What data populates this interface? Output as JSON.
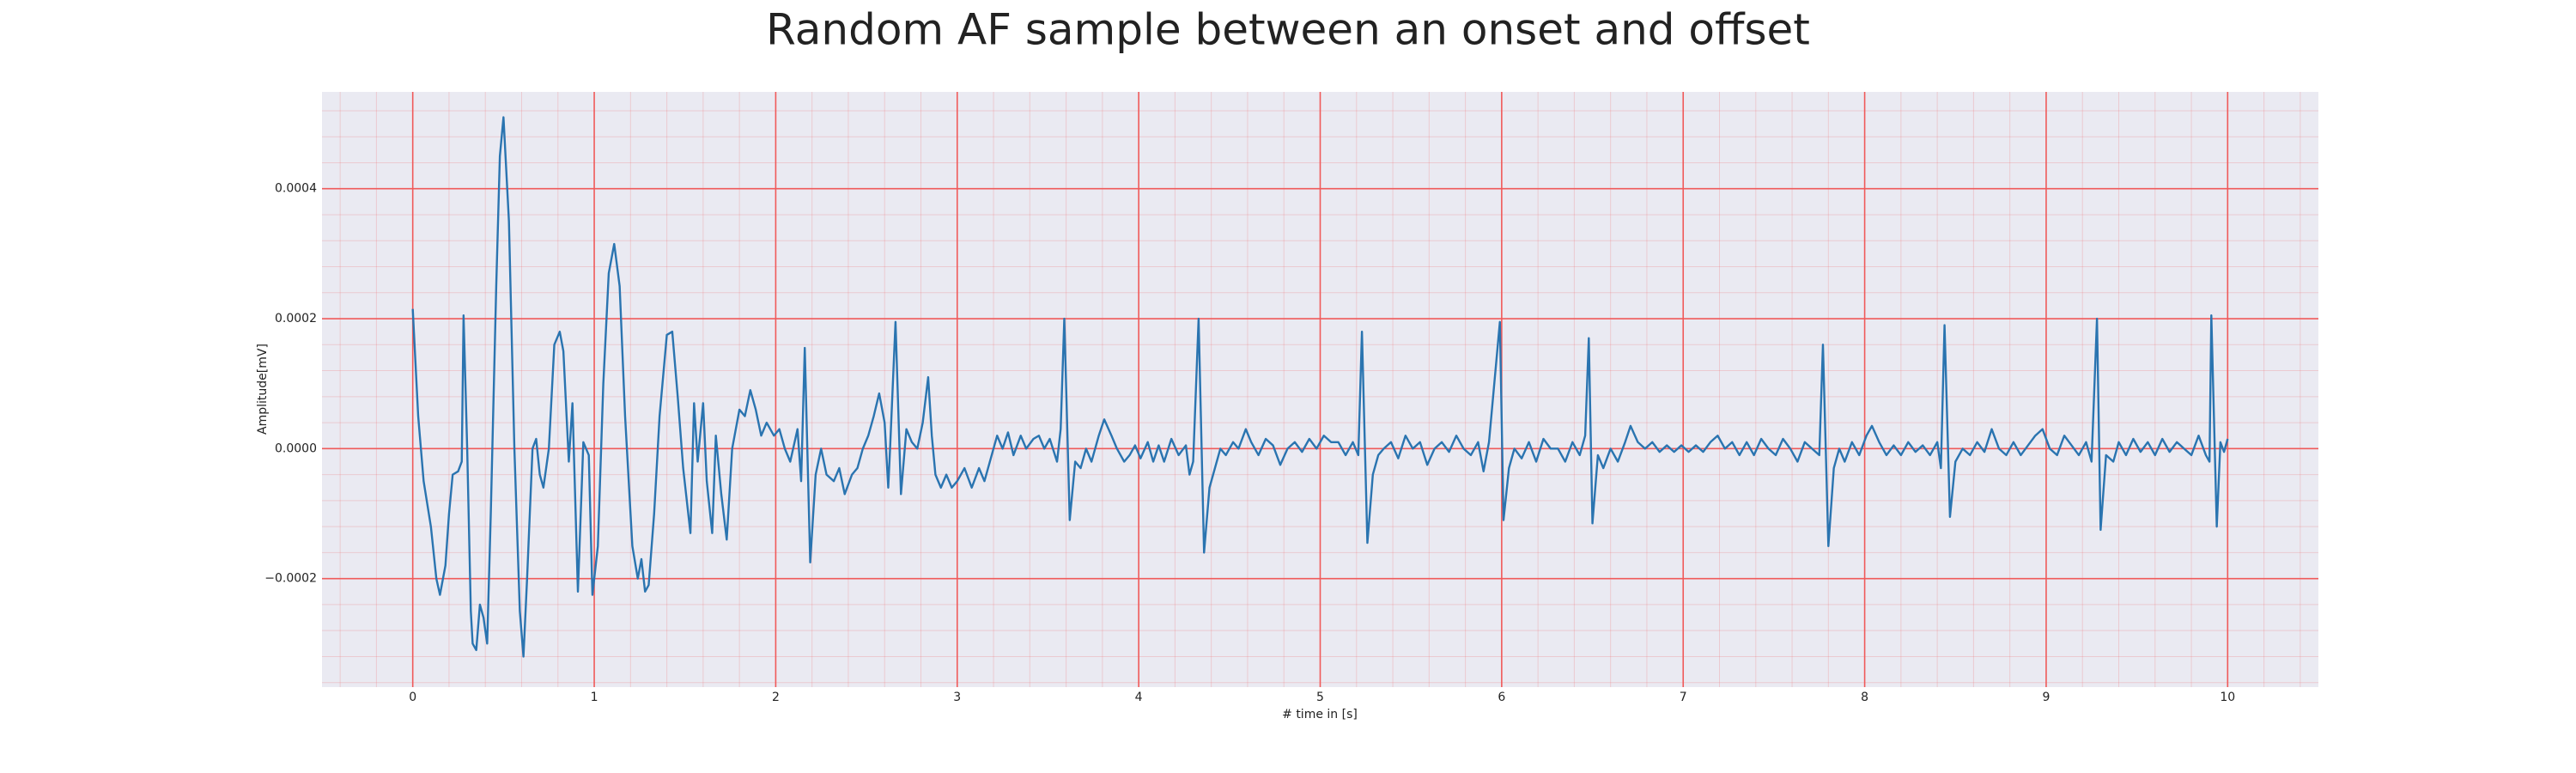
{
  "chart_data": {
    "type": "line",
    "title": "Random AF sample between an onset and offset",
    "xlabel": "# time in [s]",
    "ylabel": "Amplitude[mV]",
    "color": "#2a74b0",
    "grid": true,
    "minor_grid": true,
    "grid_color": "#f05a5a",
    "background": "#eaeaf2",
    "xlim": [
      -0.5,
      10.5
    ],
    "ylim": [
      -0.000367,
      0.000549
    ],
    "xticks": [
      0,
      1,
      2,
      3,
      4,
      5,
      6,
      7,
      8,
      9,
      10
    ],
    "yticks": [
      {
        "value": -0.0002,
        "label": "−0.0002"
      },
      {
        "value": 0,
        "label": "0.0000"
      },
      {
        "value": 0.0002,
        "label": "0.0002"
      },
      {
        "value": 0.0004,
        "label": "0.0004"
      }
    ],
    "x": [
      0,
      0.03,
      0.06,
      0.1,
      0.13,
      0.15,
      0.18,
      0.2,
      0.22,
      0.25,
      0.27,
      0.28,
      0.3,
      0.32,
      0.33,
      0.35,
      0.37,
      0.39,
      0.41,
      0.43,
      0.46,
      0.48,
      0.5,
      0.53,
      0.56,
      0.59,
      0.61,
      0.63,
      0.66,
      0.68,
      0.7,
      0.72,
      0.75,
      0.78,
      0.81,
      0.83,
      0.86,
      0.88,
      0.91,
      0.94,
      0.97,
      0.99,
      1.02,
      1.05,
      1.08,
      1.11,
      1.14,
      1.17,
      1.21,
      1.24,
      1.26,
      1.28,
      1.3,
      1.33,
      1.36,
      1.4,
      1.43,
      1.46,
      1.49,
      1.53,
      1.55,
      1.57,
      1.6,
      1.62,
      1.65,
      1.67,
      1.7,
      1.73,
      1.76,
      1.8,
      1.83,
      1.86,
      1.89,
      1.92,
      1.95,
      1.99,
      2.02,
      2.05,
      2.08,
      2.12,
      2.14,
      2.16,
      2.19,
      2.22,
      2.25,
      2.28,
      2.32,
      2.35,
      2.38,
      2.42,
      2.45,
      2.48,
      2.51,
      2.54,
      2.57,
      2.6,
      2.62,
      2.63,
      2.66,
      2.69,
      2.72,
      2.75,
      2.78,
      2.81,
      2.84,
      2.86,
      2.88,
      2.91,
      2.94,
      2.97,
      3,
      3.04,
      3.08,
      3.12,
      3.15,
      3.18,
      3.22,
      3.25,
      3.28,
      3.31,
      3.35,
      3.38,
      3.42,
      3.45,
      3.48,
      3.51,
      3.55,
      3.57,
      3.59,
      3.62,
      3.65,
      3.68,
      3.71,
      3.74,
      3.78,
      3.81,
      3.85,
      3.88,
      3.92,
      3.95,
      3.98,
      4.01,
      4.05,
      4.08,
      4.11,
      4.14,
      4.18,
      4.22,
      4.26,
      4.28,
      4.3,
      4.33,
      4.36,
      4.39,
      4.42,
      4.45,
      4.48,
      4.52,
      4.55,
      4.59,
      4.62,
      4.66,
      4.7,
      4.74,
      4.78,
      4.82,
      4.86,
      4.9,
      4.94,
      4.98,
      5.02,
      5.06,
      5.1,
      5.14,
      5.18,
      5.21,
      5.23,
      5.26,
      5.29,
      5.32,
      5.35,
      5.39,
      5.43,
      5.47,
      5.51,
      5.55,
      5.59,
      5.63,
      5.67,
      5.71,
      5.75,
      5.79,
      5.83,
      5.87,
      5.9,
      5.93,
      5.99,
      6.01,
      6.04,
      6.07,
      6.11,
      6.15,
      6.19,
      6.23,
      6.27,
      6.31,
      6.35,
      6.39,
      6.43,
      6.46,
      6.48,
      6.5,
      6.53,
      6.56,
      6.6,
      6.64,
      6.68,
      6.71,
      6.75,
      6.79,
      6.83,
      6.87,
      6.91,
      6.95,
      6.99,
      7.03,
      7.07,
      7.11,
      7.15,
      7.19,
      7.23,
      7.27,
      7.31,
      7.35,
      7.39,
      7.43,
      7.47,
      7.51,
      7.55,
      7.59,
      7.63,
      7.67,
      7.71,
      7.75,
      7.77,
      7.8,
      7.83,
      7.86,
      7.89,
      7.93,
      7.97,
      8.01,
      8.04,
      8.08,
      8.12,
      8.16,
      8.2,
      8.24,
      8.28,
      8.32,
      8.36,
      8.4,
      8.42,
      8.44,
      8.47,
      8.5,
      8.54,
      8.58,
      8.62,
      8.66,
      8.7,
      8.74,
      8.78,
      8.82,
      8.86,
      8.9,
      8.94,
      8.98,
      9.02,
      9.06,
      9.1,
      9.14,
      9.18,
      9.22,
      9.25,
      9.28,
      9.3,
      9.33,
      9.37,
      9.4,
      9.44,
      9.48,
      9.52,
      9.56,
      9.6,
      9.64,
      9.68,
      9.72,
      9.76,
      9.8,
      9.84,
      9.88,
      9.9,
      9.91,
      9.94,
      9.96,
      9.98,
      10
    ],
    "values": [
      0.000215,
      5e-05,
      -5e-05,
      -0.00012,
      -0.0002,
      -0.000225,
      -0.00018,
      -0.0001,
      -4e-05,
      -3.5e-05,
      -2e-05,
      0.000205,
      0,
      -0.00025,
      -0.0003,
      -0.00031,
      -0.00024,
      -0.00026,
      -0.0003,
      -0.0001,
      0.00025,
      0.00045,
      0.00051,
      0.00035,
      0,
      -0.00025,
      -0.00032,
      -0.0002,
      0,
      1.5e-05,
      -4e-05,
      -6e-05,
      0,
      0.00016,
      0.00018,
      0.00015,
      -2e-05,
      7e-05,
      -0.00022,
      1e-05,
      -1e-05,
      -0.000225,
      -0.00015,
      0.0001,
      0.00027,
      0.000315,
      0.00025,
      5e-05,
      -0.00015,
      -0.0002,
      -0.00017,
      -0.00022,
      -0.00021,
      -0.0001,
      5e-05,
      0.000175,
      0.00018,
      8e-05,
      -3e-05,
      -0.00013,
      7e-05,
      -2e-05,
      7e-05,
      -5e-05,
      -0.00013,
      2e-05,
      -7e-05,
      -0.00014,
      0,
      6e-05,
      5e-05,
      9e-05,
      6e-05,
      2e-05,
      4e-05,
      2e-05,
      3e-05,
      0,
      -2e-05,
      3e-05,
      -5e-05,
      0.000155,
      -0.000175,
      -4e-05,
      0,
      -4e-05,
      -5e-05,
      -3e-05,
      -7e-05,
      -4e-05,
      -3e-05,
      0,
      2e-05,
      5e-05,
      8.5e-05,
      4e-05,
      -6e-05,
      0,
      0.000195,
      -7e-05,
      3e-05,
      1e-05,
      0,
      4e-05,
      0.00011,
      2e-05,
      -4e-05,
      -6e-05,
      -4e-05,
      -6e-05,
      -5e-05,
      -3e-05,
      -6e-05,
      -3e-05,
      -5e-05,
      -2e-05,
      2e-05,
      0,
      2.5e-05,
      -1e-05,
      2e-05,
      0,
      1.5e-05,
      2e-05,
      0,
      1.5e-05,
      -2e-05,
      3e-05,
      0.0002,
      -0.00011,
      -2e-05,
      -3e-05,
      0,
      -2e-05,
      2e-05,
      4.5e-05,
      2e-05,
      0,
      -2e-05,
      -1e-05,
      5e-06,
      -1.5e-05,
      1e-05,
      -2e-05,
      5e-06,
      -2e-05,
      1.5e-05,
      -1e-05,
      5e-06,
      -4e-05,
      -2e-05,
      0.0002,
      -0.00016,
      -6e-05,
      -3e-05,
      0,
      -1e-05,
      1e-05,
      0,
      3e-05,
      1e-05,
      -1e-05,
      1.5e-05,
      5e-06,
      -2.5e-05,
      0,
      1e-05,
      -5e-06,
      1.5e-05,
      0,
      2e-05,
      1e-05,
      1e-05,
      -1e-05,
      1e-05,
      -1e-05,
      0.00018,
      -0.000145,
      -4e-05,
      -1e-05,
      0,
      1e-05,
      -1.5e-05,
      2e-05,
      0,
      1e-05,
      -2.5e-05,
      0,
      1e-05,
      -5e-06,
      2e-05,
      0,
      -1e-05,
      1e-05,
      -3.5e-05,
      1e-05,
      0.000195,
      -0.00011,
      -3e-05,
      0,
      -1.5e-05,
      1e-05,
      -2e-05,
      1.5e-05,
      0,
      0,
      -2e-05,
      1e-05,
      -1e-05,
      2e-05,
      0.00017,
      -0.000115,
      -1e-05,
      -3e-05,
      0,
      -2e-05,
      1e-05,
      3.5e-05,
      1e-05,
      0,
      1e-05,
      -5e-06,
      5e-06,
      -5e-06,
      5e-06,
      -5e-06,
      5e-06,
      -5e-06,
      1e-05,
      2e-05,
      0,
      1e-05,
      -1e-05,
      1e-05,
      -1e-05,
      1.5e-05,
      0,
      -1e-05,
      1.5e-05,
      0,
      -2e-05,
      1e-05,
      0,
      -1e-05,
      0.00016,
      -0.00015,
      -3e-05,
      0,
      -2e-05,
      1e-05,
      -1e-05,
      2e-05,
      3.5e-05,
      1e-05,
      -1e-05,
      5e-06,
      -1e-05,
      1e-05,
      -5e-06,
      5e-06,
      -1e-05,
      1e-05,
      -3e-05,
      0.00019,
      -0.000105,
      -2e-05,
      0,
      -1e-05,
      1e-05,
      -5e-06,
      3e-05,
      0,
      -1e-05,
      1e-05,
      -1e-05,
      5e-06,
      2e-05,
      3e-05,
      0,
      -1e-05,
      2e-05,
      5e-06,
      -1e-05,
      1e-05,
      -2e-05,
      0.0002,
      -0.000125,
      -1e-05,
      -2e-05,
      1e-05,
      -1e-05,
      1.5e-05,
      -5e-06,
      1e-05,
      -1e-05,
      1.5e-05,
      -5e-06,
      1e-05,
      0,
      -1e-05,
      2e-05,
      -1e-05,
      -2e-05,
      0.000205,
      -0.00012,
      1e-05,
      -5e-06,
      1.5e-05
    ]
  }
}
